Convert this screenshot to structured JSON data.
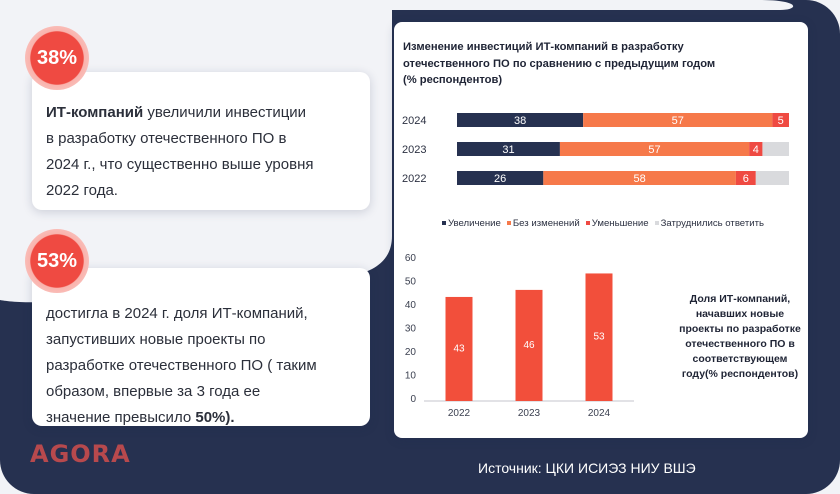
{
  "stats": [
    {
      "badge": "38%",
      "bold": "ИТ-компаний",
      "lines": [
        " увеличили инвестиции",
        "в разработку отечественного ПО в",
        "2024 г., что существенно выше уровня",
        "2022 года."
      ]
    },
    {
      "badge": "53%",
      "lines": [
        "достигла в 2024 г. доля ИТ-компаний,",
        "запустивших новые проекты по",
        "разработке отечественного ПО ( таким",
        "образом, впервые за 3 года ее"
      ],
      "last_line_pre": "значение превысило ",
      "last_line_bold": "50%)."
    }
  ],
  "logo": "AGORA",
  "source": "Источник: ЦКИ ИСИЭЗ НИУ ВШЭ",
  "colors": {
    "navy": "#263150",
    "orange": "#f6794a",
    "red": "#ef4a42",
    "gray": "#d9dadd",
    "bar": "#f24f3b"
  },
  "chart_data": [
    {
      "type": "bar",
      "orientation": "horizontal",
      "stacked": true,
      "title_lines": [
        "Изменение инвестиций ИТ-компаний в разработку",
        "отечественного ПО по сравнению с предыдущим годом",
        "(% респондентов)"
      ],
      "categories": [
        "2024",
        "2023",
        "2022"
      ],
      "series": [
        {
          "name": "Увеличение",
          "values": [
            38,
            31,
            26
          ],
          "color": "#263150"
        },
        {
          "name": "Без изменений",
          "values": [
            57,
            57,
            58
          ],
          "color": "#f6794a"
        },
        {
          "name": "Уменьшение",
          "values": [
            5,
            4,
            6
          ],
          "color": "#ef4a42"
        },
        {
          "name": "Затруднились ответить",
          "values": [
            0,
            8,
            10
          ],
          "color": "#d9dadd"
        }
      ],
      "legend_position": "bottom"
    },
    {
      "type": "bar",
      "categories": [
        "2022",
        "2023",
        "2024"
      ],
      "values": [
        43,
        46,
        53
      ],
      "ylim": [
        0,
        60
      ],
      "yticks": [
        "0",
        "10",
        "20",
        "30",
        "40",
        "50",
        "60"
      ],
      "title_lines": [
        "Доля ИТ-компаний,",
        "начавших новые",
        "проекты по разработке",
        "отечественного ПО в",
        "соответствующем",
        "году(% респондентов)"
      ],
      "title_position": "right"
    }
  ]
}
